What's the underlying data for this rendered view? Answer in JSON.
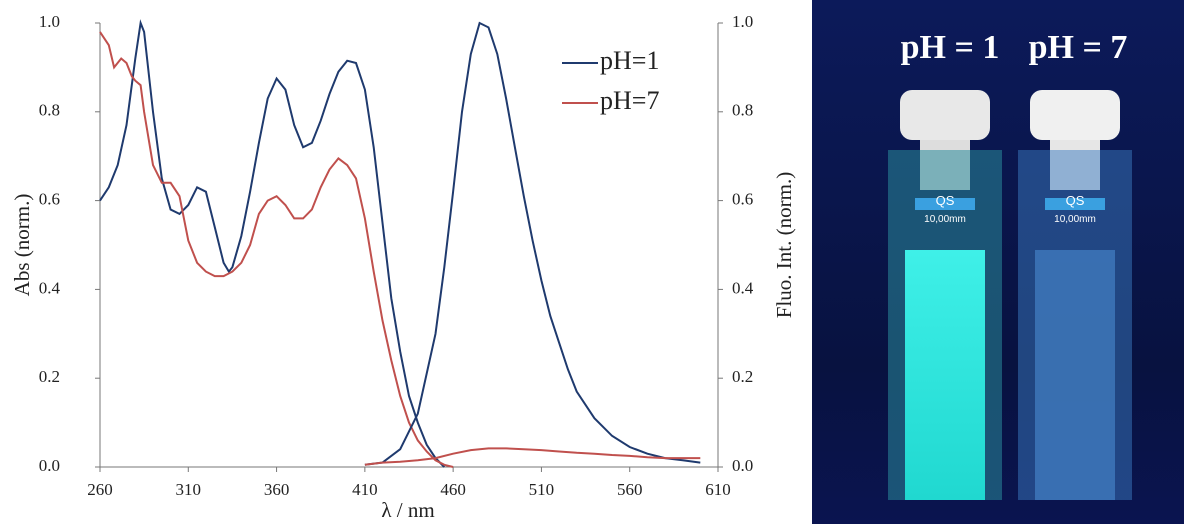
{
  "chart_data": {
    "type": "line",
    "xlabel": "λ / nm",
    "ylabel": "Abs (norm.)",
    "y2label": "Fluo. Int. (norm.)",
    "xlim": [
      260,
      610
    ],
    "xticks": [
      260,
      310,
      360,
      410,
      460,
      510,
      560,
      610
    ],
    "ylim": [
      0,
      1
    ],
    "yticks": [
      {
        "value": 0,
        "label": "0.0"
      },
      0.2,
      0.4,
      0.6,
      0.8,
      {
        "value": 1,
        "label": "1.0"
      }
    ],
    "y2lim": [
      0,
      1
    ],
    "y2ticks": [
      {
        "value": 0,
        "label": "0.0"
      },
      0.2,
      0.4,
      0.6,
      0.8,
      {
        "value": 1,
        "label": "1.0"
      }
    ],
    "legend": "upper right",
    "series": [
      {
        "name": "pH=1",
        "color": "#1f3a6e",
        "x": [
          260,
          265,
          270,
          275,
          280,
          283,
          285,
          290,
          295,
          300,
          305,
          310,
          315,
          320,
          325,
          330,
          333,
          335,
          340,
          345,
          350,
          355,
          360,
          365,
          370,
          375,
          380,
          385,
          390,
          395,
          400,
          405,
          410,
          415,
          420,
          425,
          430,
          435,
          440,
          445,
          450,
          455
        ],
        "values": [
          0.6,
          0.63,
          0.68,
          0.77,
          0.92,
          1.0,
          0.98,
          0.8,
          0.65,
          0.58,
          0.57,
          0.59,
          0.63,
          0.62,
          0.54,
          0.46,
          0.44,
          0.45,
          0.52,
          0.62,
          0.73,
          0.83,
          0.875,
          0.85,
          0.77,
          0.72,
          0.73,
          0.78,
          0.84,
          0.89,
          0.915,
          0.91,
          0.85,
          0.72,
          0.55,
          0.38,
          0.26,
          0.16,
          0.1,
          0.05,
          0.02,
          0.0
        ]
      },
      {
        "name": "pH=7",
        "color": "#c0504d",
        "x": [
          260,
          265,
          268,
          272,
          275,
          278,
          280,
          283,
          285,
          290,
          295,
          300,
          305,
          310,
          315,
          320,
          325,
          330,
          335,
          340,
          345,
          350,
          355,
          360,
          365,
          370,
          375,
          380,
          385,
          390,
          395,
          400,
          405,
          410,
          415,
          420,
          425,
          430,
          435,
          440,
          445,
          450,
          455,
          460
        ],
        "values": [
          0.98,
          0.95,
          0.9,
          0.92,
          0.91,
          0.88,
          0.87,
          0.86,
          0.8,
          0.68,
          0.64,
          0.64,
          0.61,
          0.51,
          0.46,
          0.44,
          0.43,
          0.43,
          0.44,
          0.46,
          0.5,
          0.57,
          0.6,
          0.61,
          0.59,
          0.56,
          0.56,
          0.58,
          0.63,
          0.67,
          0.695,
          0.68,
          0.65,
          0.56,
          0.44,
          0.33,
          0.24,
          0.16,
          0.1,
          0.06,
          0.035,
          0.015,
          0.005,
          0.0
        ]
      },
      {
        "color": "#1f3a6e",
        "axis": "y2",
        "x": [
          410,
          420,
          430,
          440,
          450,
          455,
          460,
          465,
          470,
          475,
          480,
          485,
          490,
          495,
          500,
          505,
          510,
          515,
          520,
          525,
          530,
          540,
          550,
          560,
          570,
          580,
          590,
          600
        ],
        "values": [
          0.005,
          0.01,
          0.04,
          0.12,
          0.3,
          0.45,
          0.62,
          0.8,
          0.93,
          1.0,
          0.99,
          0.93,
          0.83,
          0.72,
          0.61,
          0.51,
          0.42,
          0.34,
          0.28,
          0.22,
          0.17,
          0.11,
          0.07,
          0.045,
          0.03,
          0.02,
          0.015,
          0.01
        ]
      },
      {
        "color": "#c0504d",
        "axis": "y2",
        "x": [
          410,
          420,
          430,
          440,
          450,
          460,
          470,
          480,
          490,
          500,
          510,
          520,
          530,
          540,
          550,
          560,
          570,
          580,
          590,
          600
        ],
        "values": [
          0.005,
          0.01,
          0.012,
          0.015,
          0.02,
          0.03,
          0.038,
          0.042,
          0.042,
          0.04,
          0.038,
          0.035,
          0.032,
          0.03,
          0.027,
          0.025,
          0.022,
          0.02,
          0.02,
          0.02
        ]
      }
    ]
  },
  "photo": {
    "labels": [
      "pH = 1",
      "pH = 7"
    ],
    "cuvette_label": "QS",
    "cuvette_size": "10,00mm"
  }
}
